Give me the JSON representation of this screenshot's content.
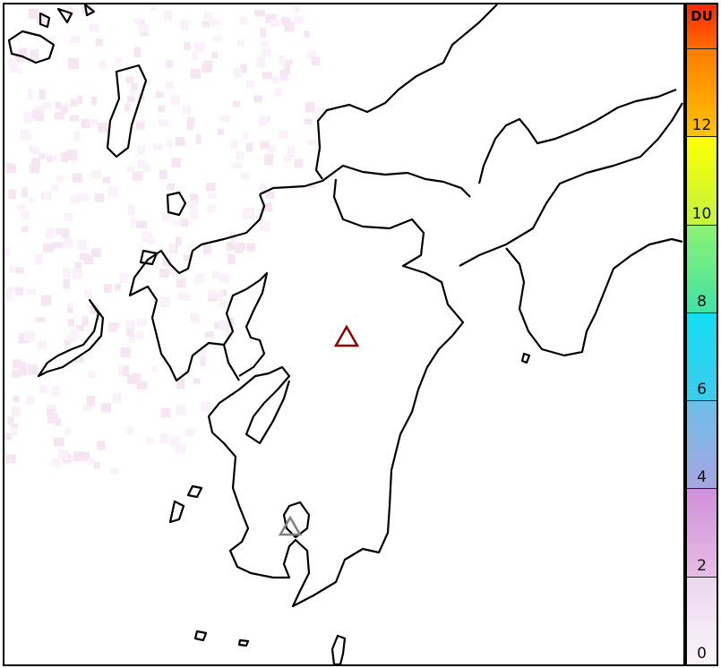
{
  "colorbar": {
    "unit": "DU",
    "min": 0,
    "max": 15,
    "tick_labels": [
      "0",
      "2",
      "4",
      "6",
      "8",
      "10",
      "12"
    ],
    "unlabeled_ticks": [
      14
    ],
    "segments": [
      {
        "from": 0,
        "to": 2,
        "colors": [
          "#fbf5fb",
          "#ecd6ee"
        ]
      },
      {
        "from": 2,
        "to": 4,
        "colors": [
          "#e6bde6",
          "#d08fd8"
        ]
      },
      {
        "from": 4,
        "to": 6,
        "colors": [
          "#a6a6e0",
          "#6cbde8"
        ]
      },
      {
        "from": 6,
        "to": 8,
        "colors": [
          "#3ecbec",
          "#12dff2"
        ]
      },
      {
        "from": 8,
        "to": 10,
        "colors": [
          "#3fe3a6",
          "#8ef272"
        ]
      },
      {
        "from": 10,
        "to": 12,
        "colors": [
          "#c2f43f",
          "#ffff00"
        ]
      },
      {
        "from": 12,
        "to": 14,
        "colors": [
          "#ffc400",
          "#ff7b00"
        ]
      },
      {
        "from": 14,
        "to": 15,
        "colors": [
          "#ff6a00",
          "#ff2a00"
        ]
      }
    ]
  },
  "map": {
    "coastline_color": "#000000",
    "background_color": "#ffffff",
    "markers": [
      {
        "type": "triangle",
        "color": "#8b0000",
        "name": "volcano-marker-aso"
      },
      {
        "type": "triangle",
        "color": "#808080",
        "name": "volcano-marker-sakurajima"
      }
    ]
  }
}
